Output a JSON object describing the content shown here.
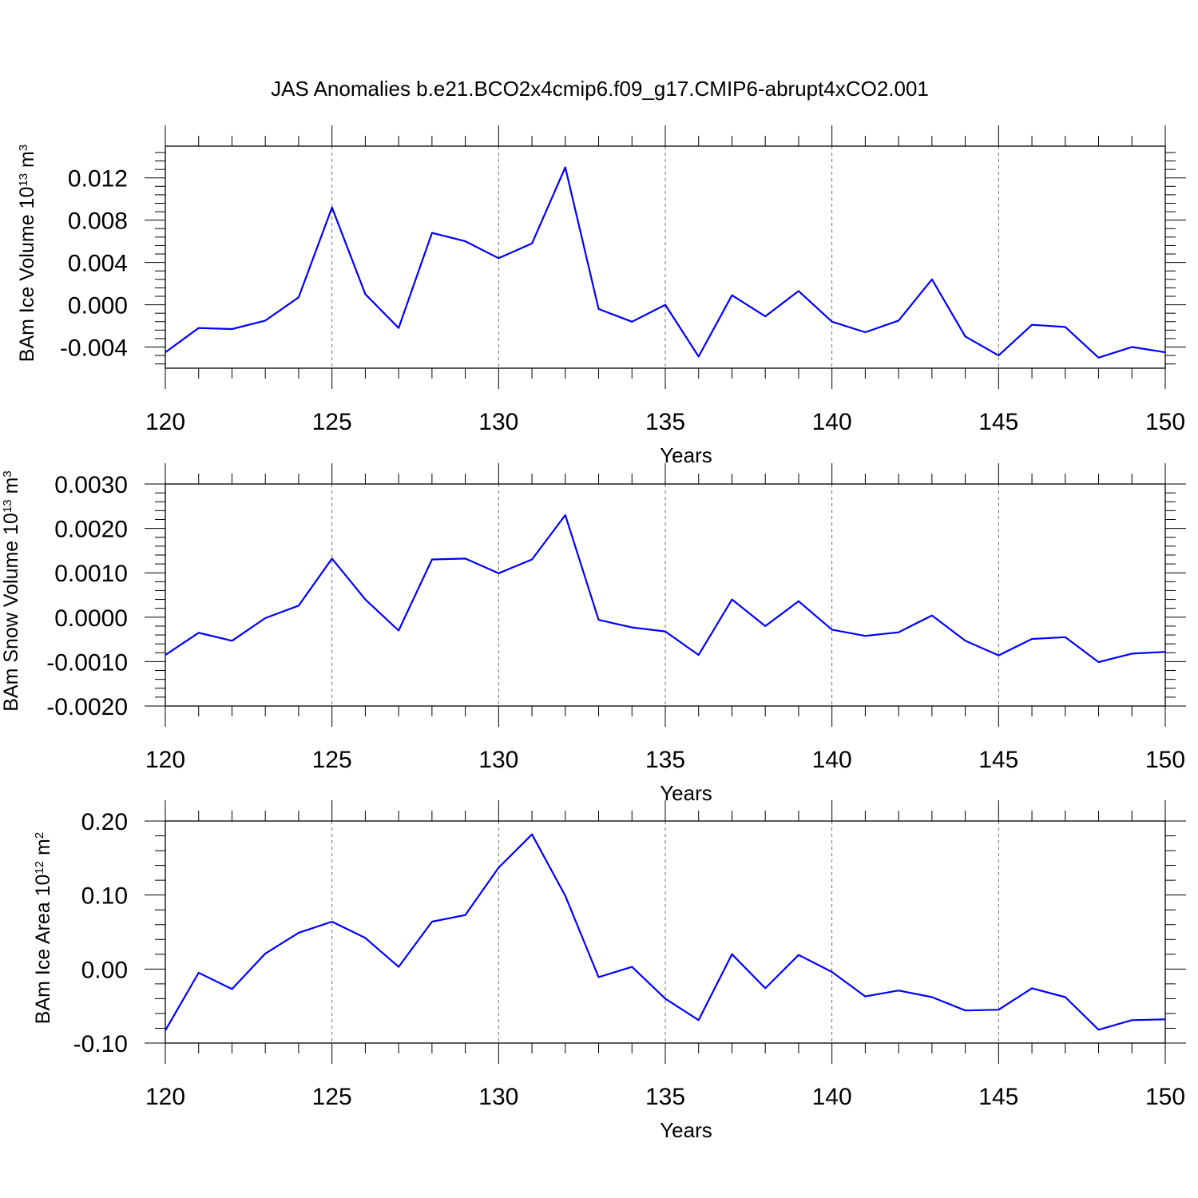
{
  "title": "JAS Anomalies b.e21.BCO2x4cmip6.f09_g17.CMIP6-abrupt4xCO2.001",
  "colors": {
    "series": "#0000ff",
    "axes": "#000000",
    "background": "#ffffff"
  },
  "chart_data": [
    {
      "type": "line",
      "xlabel": "Years",
      "ylabel": {
        "text": "BAm Ice Volume 10",
        "exp": "13",
        "unit": "m",
        "unit_exp": "3"
      },
      "xlim": [
        120,
        150
      ],
      "ylim": [
        -0.006,
        0.015
      ],
      "x_ticks": [
        120,
        125,
        130,
        135,
        140,
        145,
        150
      ],
      "x_tick_labels": [
        "120",
        "125",
        "130",
        "135",
        "140",
        "145",
        "150"
      ],
      "y_ticks": [
        -0.004,
        0.0,
        0.004,
        0.008,
        0.012
      ],
      "y_tick_labels": [
        "-0.004",
        "0.000",
        "0.004",
        "0.008",
        "0.012"
      ],
      "x": [
        120,
        121,
        122,
        123,
        124,
        125,
        126,
        127,
        128,
        129,
        130,
        131,
        132,
        133,
        134,
        135,
        136,
        137,
        138,
        139,
        140,
        141,
        142,
        143,
        144,
        145,
        146,
        147,
        148,
        149,
        150
      ],
      "series": [
        {
          "name": "BAm Ice Volume",
          "values": [
            -0.0045,
            -0.0022,
            -0.0023,
            -0.0015,
            0.0007,
            0.0092,
            0.001,
            -0.0022,
            0.0068,
            0.006,
            0.0044,
            0.0058,
            0.013,
            -0.0004,
            -0.0016,
            0.0,
            -0.0049,
            0.0009,
            -0.0011,
            0.0013,
            -0.0016,
            -0.0026,
            -0.0015,
            0.0024,
            -0.003,
            -0.0048,
            -0.0019,
            -0.0021,
            -0.005,
            -0.004,
            -0.0045
          ]
        }
      ]
    },
    {
      "type": "line",
      "xlabel": "Years",
      "ylabel": {
        "text": "BAm Snow Volume 10",
        "exp": "13",
        "unit": "m",
        "unit_exp": "3"
      },
      "xlim": [
        120,
        150
      ],
      "ylim": [
        -0.002,
        0.003
      ],
      "x_ticks": [
        120,
        125,
        130,
        135,
        140,
        145,
        150
      ],
      "x_tick_labels": [
        "120",
        "125",
        "130",
        "135",
        "140",
        "145",
        "150"
      ],
      "y_ticks": [
        -0.002,
        -0.001,
        0.0,
        0.001,
        0.002,
        0.003
      ],
      "y_tick_labels": [
        "-0.0020",
        "-0.0010",
        "0.0000",
        "0.0010",
        "0.0020",
        "0.0030"
      ],
      "x": [
        120,
        121,
        122,
        123,
        124,
        125,
        126,
        127,
        128,
        129,
        130,
        131,
        132,
        133,
        134,
        135,
        136,
        137,
        138,
        139,
        140,
        141,
        142,
        143,
        144,
        145,
        146,
        147,
        148,
        149,
        150
      ],
      "series": [
        {
          "name": "BAm Snow Volume",
          "values": [
            -0.00085,
            -0.00035,
            -0.00053,
            -2e-05,
            0.00026,
            0.00132,
            0.0004,
            -0.0003,
            0.0013,
            0.00132,
            0.00099,
            0.0013,
            0.0023,
            -6e-05,
            -0.00023,
            -0.00032,
            -0.00085,
            0.0004,
            -0.0002,
            0.00036,
            -0.00028,
            -0.00042,
            -0.00034,
            4e-05,
            -0.00053,
            -0.00086,
            -0.00049,
            -0.00045,
            -0.00101,
            -0.00082,
            -0.00078
          ]
        }
      ]
    },
    {
      "type": "line",
      "xlabel": "Years",
      "ylabel": {
        "text": "BAm Ice Area 10",
        "exp": "12",
        "unit": "m",
        "unit_exp": "2"
      },
      "xlim": [
        120,
        150
      ],
      "ylim": [
        -0.1,
        0.2
      ],
      "x_ticks": [
        120,
        125,
        130,
        135,
        140,
        145,
        150
      ],
      "x_tick_labels": [
        "120",
        "125",
        "130",
        "135",
        "140",
        "145",
        "150"
      ],
      "y_ticks": [
        -0.1,
        0.0,
        0.1,
        0.2
      ],
      "y_tick_labels": [
        "-0.10",
        "0.00",
        "0.10",
        "0.20"
      ],
      "x": [
        120,
        121,
        122,
        123,
        124,
        125,
        126,
        127,
        128,
        129,
        130,
        131,
        132,
        133,
        134,
        135,
        136,
        137,
        138,
        139,
        140,
        141,
        142,
        143,
        144,
        145,
        146,
        147,
        148,
        149,
        150
      ],
      "series": [
        {
          "name": "BAm Ice Area",
          "values": [
            -0.083,
            -0.005,
            -0.027,
            0.021,
            0.049,
            0.064,
            0.042,
            0.003,
            0.064,
            0.073,
            0.137,
            0.182,
            0.099,
            -0.011,
            0.003,
            -0.04,
            -0.069,
            0.02,
            -0.026,
            0.019,
            -0.004,
            -0.037,
            -0.029,
            -0.038,
            -0.056,
            -0.055,
            -0.026,
            -0.038,
            -0.082,
            -0.069,
            -0.068
          ]
        }
      ]
    }
  ]
}
